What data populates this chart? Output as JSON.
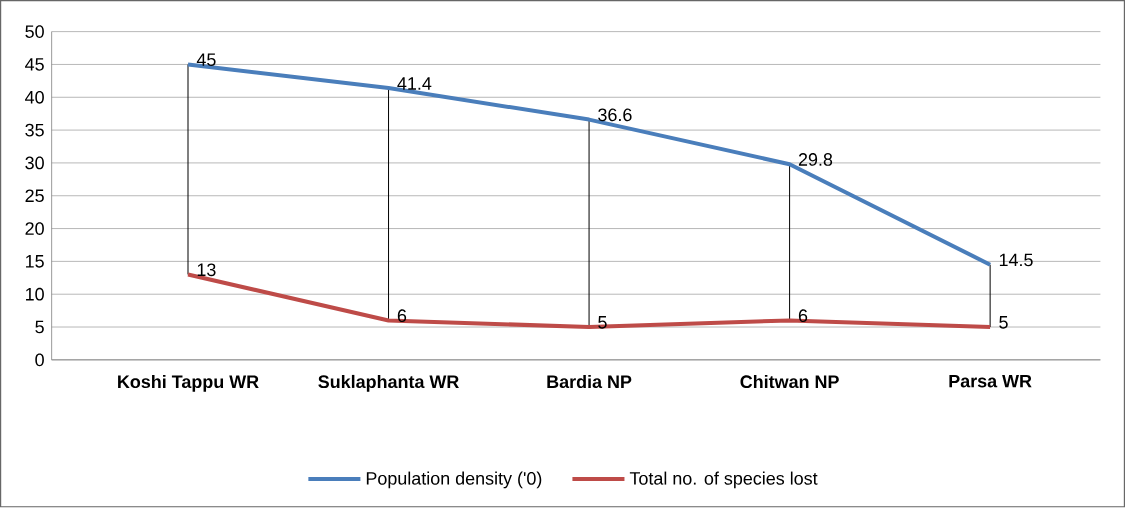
{
  "chart_data": {
    "type": "line",
    "categories": [
      "Koshi Tappu WR",
      "Suklaphanta WR",
      "Bardia NP",
      "Chitwan NP",
      "Parsa WR"
    ],
    "series": [
      {
        "name": "Population density ('0)",
        "color": "#4a7ebb",
        "values": [
          45,
          41.4,
          36.6,
          29.8,
          14.5
        ]
      },
      {
        "name": "Total no. of species lost",
        "color": "#be4b48",
        "values": [
          13,
          6,
          5,
          6,
          5
        ]
      }
    ],
    "ylim": [
      0,
      50
    ],
    "yticks": [
      0,
      5,
      10,
      15,
      20,
      25,
      30,
      35,
      40,
      45,
      50
    ],
    "grid": "y",
    "legend": "bottom",
    "data_labels": true,
    "marker": "none",
    "line_style": "solid"
  }
}
